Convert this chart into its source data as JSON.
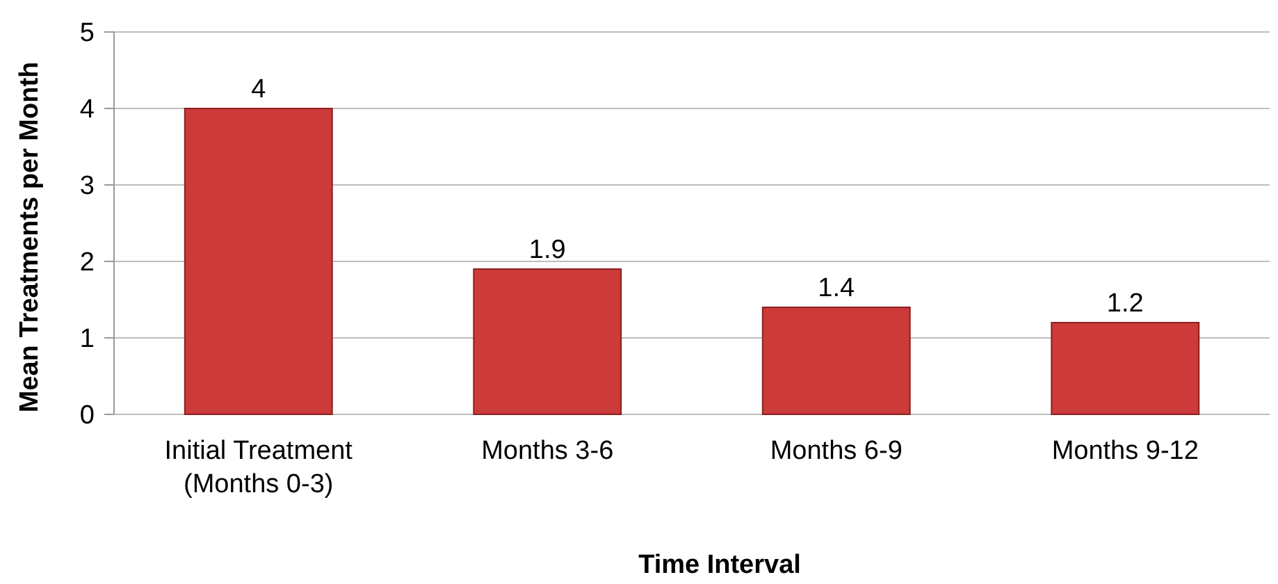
{
  "chart_data": {
    "type": "bar",
    "xlabel": "Time Interval",
    "ylabel": "Mean Treatments per Month",
    "categories": [
      "Initial Treatment\n(Months 0-3)",
      "Months 3-6",
      "Months 6-9",
      "Months 9-12"
    ],
    "values": [
      4,
      1.9,
      1.4,
      1.2
    ],
    "color": "#cc3a3a",
    "ylim": [
      0,
      5
    ],
    "yticks": [
      0,
      1,
      2,
      3,
      4,
      5
    ],
    "grid": "y",
    "data_labels": true
  }
}
